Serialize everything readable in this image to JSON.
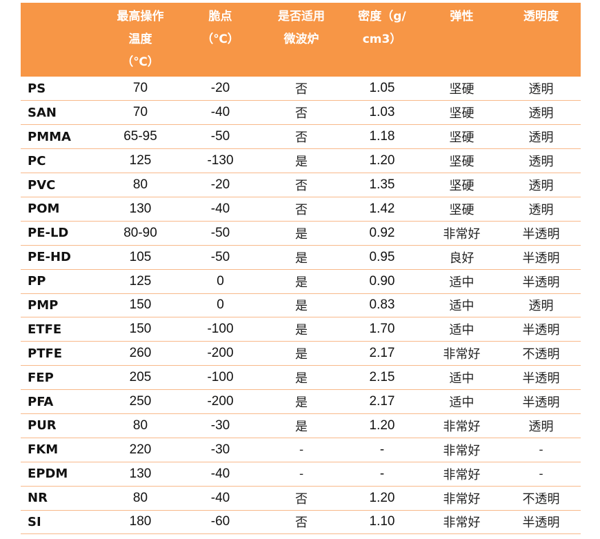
{
  "headers": [
    {
      "lines": [
        ""
      ]
    },
    {
      "lines": [
        "最高操作",
        "温度",
        "（℃）"
      ]
    },
    {
      "lines": [
        "脆点",
        "（℃）"
      ]
    },
    {
      "lines": [
        "是否适用",
        "微波炉"
      ]
    },
    {
      "lines": [
        "密度（g/",
        "cm3）"
      ]
    },
    {
      "lines": [
        "弹性"
      ]
    },
    {
      "lines": [
        "透明度"
      ]
    }
  ],
  "rows": [
    [
      "PS",
      "70",
      "-20",
      "否",
      "1.05",
      "坚硬",
      "透明"
    ],
    [
      "SAN",
      "70",
      "-40",
      "否",
      "1.03",
      "坚硬",
      "透明"
    ],
    [
      "PMMA",
      "65-95",
      "-50",
      "否",
      "1.18",
      "坚硬",
      "透明"
    ],
    [
      "PC",
      "125",
      "-130",
      "是",
      "1.20",
      "坚硬",
      "透明"
    ],
    [
      "PVC",
      "80",
      "-20",
      "否",
      "1.35",
      "坚硬",
      "透明"
    ],
    [
      "POM",
      "130",
      "-40",
      "否",
      "1.42",
      "坚硬",
      "透明"
    ],
    [
      "PE-LD",
      "80-90",
      "-50",
      "是",
      "0.92",
      "非常好",
      "半透明"
    ],
    [
      "PE-HD",
      "105",
      "-50",
      "是",
      "0.95",
      "良好",
      "半透明"
    ],
    [
      "PP",
      "125",
      "0",
      "是",
      "0.90",
      "适中",
      "半透明"
    ],
    [
      "PMP",
      "150",
      "0",
      "是",
      "0.83",
      "适中",
      "透明"
    ],
    [
      "ETFE",
      "150",
      "-100",
      "是",
      "1.70",
      "适中",
      "半透明"
    ],
    [
      "PTFE",
      "260",
      "-200",
      "是",
      "2.17",
      "非常好",
      "不透明"
    ],
    [
      "FEP",
      "205",
      "-100",
      "是",
      "2.15",
      "适中",
      "半透明"
    ],
    [
      "PFA",
      "250",
      "-200",
      "是",
      "2.17",
      "适中",
      "半透明"
    ],
    [
      "PUR",
      "80",
      "-30",
      "是",
      "1.20",
      "非常好",
      "透明"
    ],
    [
      "FKM",
      "220",
      "-30",
      "-",
      "-",
      "非常好",
      "-"
    ],
    [
      "EPDM",
      "130",
      "-40",
      "-",
      "-",
      "非常好",
      "-"
    ],
    [
      "NR",
      "80",
      "-40",
      "否",
      "1.20",
      "非常好",
      "不透明"
    ],
    [
      "SI",
      "180",
      "-60",
      "否",
      "1.10",
      "非常好",
      "半透明"
    ]
  ]
}
